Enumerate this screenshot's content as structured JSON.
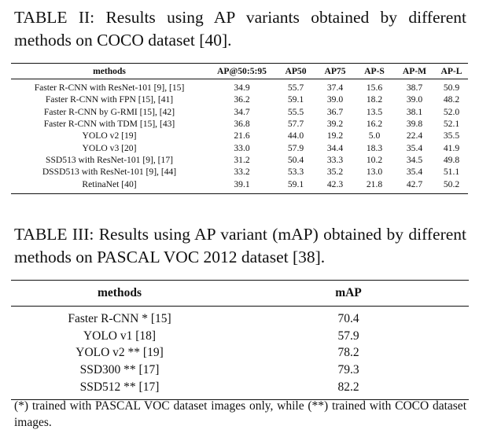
{
  "table2": {
    "caption": "TABLE II: Results using AP variants obtained by different methods on COCO dataset [40].",
    "headers": [
      "methods",
      "AP@50:5:95",
      "AP50",
      "AP75",
      "AP-S",
      "AP-M",
      "AP-L"
    ],
    "rows": [
      [
        "Faster R-CNN with ResNet-101 [9], [15]",
        "34.9",
        "55.7",
        "37.4",
        "15.6",
        "38.7",
        "50.9"
      ],
      [
        "Faster R-CNN with FPN [15], [41]",
        "36.2",
        "59.1",
        "39.0",
        "18.2",
        "39.0",
        "48.2"
      ],
      [
        "Faster R-CNN by G-RMI [15], [42]",
        "34.7",
        "55.5",
        "36.7",
        "13.5",
        "38.1",
        "52.0"
      ],
      [
        "Faster R-CNN with TDM [15], [43]",
        "36.8",
        "57.7",
        "39.2",
        "16.2",
        "39.8",
        "52.1"
      ],
      [
        "YOLO v2 [19]",
        "21.6",
        "44.0",
        "19.2",
        "5.0",
        "22.4",
        "35.5"
      ],
      [
        "YOLO v3 [20]",
        "33.0",
        "57.9",
        "34.4",
        "18.3",
        "35.4",
        "41.9"
      ],
      [
        "SSD513 with ResNet-101 [9], [17]",
        "31.2",
        "50.4",
        "33.3",
        "10.2",
        "34.5",
        "49.8"
      ],
      [
        "DSSD513 with ResNet-101 [9], [44]",
        "33.2",
        "53.3",
        "35.2",
        "13.0",
        "35.4",
        "51.1"
      ],
      [
        "RetinaNet [40]",
        "39.1",
        "59.1",
        "42.3",
        "21.8",
        "42.7",
        "50.2"
      ]
    ]
  },
  "table3": {
    "caption": "TABLE III: Results using AP variant (mAP) obtained by different methods on PASCAL VOC 2012 dataset [38].",
    "headers": [
      "methods",
      "mAP"
    ],
    "rows": [
      [
        "Faster R-CNN * [15]",
        "70.4"
      ],
      [
        "YOLO v1 [18]",
        "57.9"
      ],
      [
        "YOLO v2 ** [19]",
        "78.2"
      ],
      [
        "SSD300 ** [17]",
        "79.3"
      ],
      [
        "SSD512 ** [17]",
        "82.2"
      ]
    ],
    "note": "(*) trained with PASCAL VOC dataset images only, while (**) trained with COCO dataset images."
  }
}
